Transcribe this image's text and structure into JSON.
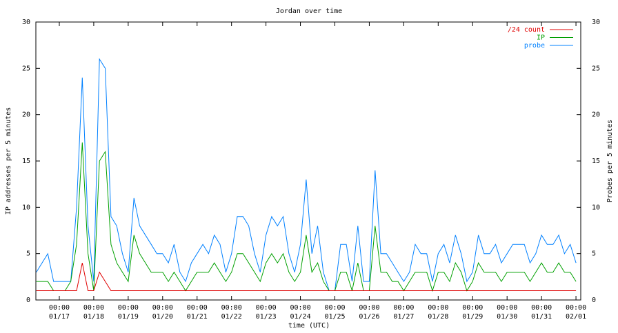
{
  "chart_data": {
    "type": "line",
    "title": "Jordan over time",
    "xlabel": "time (UTC)",
    "ylabel": "IP addresses per 5 minutes",
    "y2label": "Probes per 5 minutes",
    "legend": "upper right",
    "grid": false,
    "xlim": [
      "01/16 07:40",
      "02/01 03:20"
    ],
    "xticks": [
      {
        "value": "01/17 00:00",
        "label": [
          "00:00",
          "01/17"
        ]
      },
      {
        "value": "01/18 00:00",
        "label": [
          "00:00",
          "01/18"
        ]
      },
      {
        "value": "01/19 00:00",
        "label": [
          "00:00",
          "01/19"
        ]
      },
      {
        "value": "01/20 00:00",
        "label": [
          "00:00",
          "01/20"
        ]
      },
      {
        "value": "01/21 00:00",
        "label": [
          "00:00",
          "01/21"
        ]
      },
      {
        "value": "01/22 00:00",
        "label": [
          "00:00",
          "01/22"
        ]
      },
      {
        "value": "01/23 00:00",
        "label": [
          "00:00",
          "01/23"
        ]
      },
      {
        "value": "01/24 00:00",
        "label": [
          "00:00",
          "01/24"
        ]
      },
      {
        "value": "01/25 00:00",
        "label": [
          "00:00",
          "01/25"
        ]
      },
      {
        "value": "01/26 00:00",
        "label": [
          "00:00",
          "01/26"
        ]
      },
      {
        "value": "01/27 00:00",
        "label": [
          "00:00",
          "01/27"
        ]
      },
      {
        "value": "01/28 00:00",
        "label": [
          "00:00",
          "01/28"
        ]
      },
      {
        "value": "01/29 00:00",
        "label": [
          "00:00",
          "01/29"
        ]
      },
      {
        "value": "01/30 00:00",
        "label": [
          "00:00",
          "01/30"
        ]
      },
      {
        "value": "01/31 00:00",
        "label": [
          "00:00",
          "01/31"
        ]
      },
      {
        "value": "02/01 00:00",
        "label": [
          "00:00",
          "02/01"
        ]
      }
    ],
    "ylim": [
      0,
      30
    ],
    "yticks": [
      0,
      5,
      10,
      15,
      20,
      25,
      30
    ],
    "y2lim": [
      0,
      30
    ],
    "y2ticks": [
      0,
      5,
      10,
      15,
      20,
      25,
      30
    ],
    "x": [
      "01/16 08:00",
      "01/16 12:00",
      "01/16 16:00",
      "01/16 20:00",
      "01/17 00:00",
      "01/17 04:00",
      "01/17 08:00",
      "01/17 12:00",
      "01/17 16:00",
      "01/17 20:00",
      "01/18 00:00",
      "01/18 04:00",
      "01/18 08:00",
      "01/18 12:00",
      "01/18 16:00",
      "01/18 20:00",
      "01/19 00:00",
      "01/19 04:00",
      "01/19 08:00",
      "01/19 12:00",
      "01/19 16:00",
      "01/19 20:00",
      "01/20 00:00",
      "01/20 04:00",
      "01/20 08:00",
      "01/20 12:00",
      "01/20 16:00",
      "01/20 20:00",
      "01/21 00:00",
      "01/21 04:00",
      "01/21 08:00",
      "01/21 12:00",
      "01/21 16:00",
      "01/21 20:00",
      "01/22 00:00",
      "01/22 04:00",
      "01/22 08:00",
      "01/22 12:00",
      "01/22 16:00",
      "01/22 20:00",
      "01/23 00:00",
      "01/23 04:00",
      "01/23 08:00",
      "01/23 12:00",
      "01/23 16:00",
      "01/23 20:00",
      "01/24 00:00",
      "01/24 04:00",
      "01/24 08:00",
      "01/24 12:00",
      "01/24 16:00",
      "01/24 20:00",
      "01/25 00:00",
      "01/25 04:00",
      "01/25 08:00",
      "01/25 12:00",
      "01/25 16:00",
      "01/25 20:00",
      "01/26 00:00",
      "01/26 04:00",
      "01/26 08:00",
      "01/26 12:00",
      "01/26 16:00",
      "01/26 20:00",
      "01/27 00:00",
      "01/27 04:00",
      "01/27 08:00",
      "01/27 12:00",
      "01/27 16:00",
      "01/27 20:00",
      "01/28 00:00",
      "01/28 04:00",
      "01/28 08:00",
      "01/28 12:00",
      "01/28 16:00",
      "01/28 20:00",
      "01/29 00:00",
      "01/29 04:00",
      "01/29 08:00",
      "01/29 12:00",
      "01/29 16:00",
      "01/29 20:00",
      "01/30 00:00",
      "01/30 04:00",
      "01/30 08:00",
      "01/30 12:00",
      "01/30 16:00",
      "01/30 20:00",
      "01/31 00:00",
      "01/31 04:00",
      "01/31 08:00",
      "01/31 12:00",
      "01/31 16:00",
      "01/31 20:00",
      "02/01 00:00"
    ],
    "series": [
      {
        "name": "/24 count",
        "color": "#e00000",
        "values": [
          1,
          1,
          1,
          1,
          1,
          1,
          1,
          1,
          4,
          1,
          1,
          3,
          2,
          1,
          1,
          1,
          1,
          1,
          1,
          1,
          1,
          1,
          1,
          1,
          1,
          1,
          1,
          1,
          1,
          1,
          1,
          1,
          1,
          1,
          1,
          1,
          1,
          1,
          1,
          1,
          1,
          1,
          1,
          1,
          1,
          1,
          1,
          1,
          1,
          1,
          1,
          1,
          1,
          1,
          1,
          1,
          1,
          1,
          1,
          1,
          1,
          1,
          1,
          1,
          1,
          1,
          1,
          1,
          1,
          1,
          1,
          1,
          1,
          1,
          1,
          1,
          1,
          1,
          1,
          1,
          1,
          1,
          1,
          1,
          1,
          1,
          1,
          1,
          1,
          1,
          1,
          1,
          1,
          1,
          1
        ]
      },
      {
        "name": "IP",
        "color": "#00a000",
        "values": [
          2,
          2,
          2,
          1,
          1,
          1,
          2,
          6,
          17,
          5,
          1,
          15,
          16,
          6,
          4,
          3,
          2,
          7,
          5,
          4,
          3,
          3,
          3,
          2,
          3,
          2,
          1,
          2,
          3,
          3,
          3,
          4,
          3,
          2,
          3,
          5,
          5,
          4,
          3,
          2,
          4,
          5,
          4,
          5,
          3,
          2,
          3,
          7,
          3,
          4,
          2,
          1,
          1,
          3,
          3,
          1,
          4,
          1,
          1,
          8,
          3,
          3,
          2,
          2,
          1,
          2,
          3,
          3,
          3,
          1,
          3,
          3,
          2,
          4,
          3,
          1,
          2,
          4,
          3,
          3,
          3,
          2,
          3,
          3,
          3,
          3,
          2,
          3,
          4,
          3,
          3,
          4,
          3,
          3,
          2
        ]
      },
      {
        "name": "probe",
        "color": "#0080ff",
        "axis": "y2",
        "values": [
          3,
          4,
          5,
          2,
          2,
          2,
          2,
          10,
          24,
          8,
          2,
          26,
          25,
          9,
          8,
          5,
          3,
          11,
          8,
          7,
          6,
          5,
          5,
          4,
          6,
          3,
          2,
          4,
          5,
          6,
          5,
          7,
          6,
          3,
          5,
          9,
          9,
          8,
          5,
          3,
          7,
          9,
          8,
          9,
          5,
          3,
          6,
          13,
          5,
          8,
          3,
          1,
          1,
          6,
          6,
          2,
          8,
          2,
          2,
          14,
          5,
          5,
          4,
          3,
          2,
          3,
          6,
          5,
          5,
          2,
          5,
          6,
          4,
          7,
          5,
          2,
          3,
          7,
          5,
          5,
          6,
          4,
          5,
          6,
          6,
          6,
          4,
          5,
          7,
          6,
          6,
          7,
          5,
          6,
          4
        ]
      }
    ]
  }
}
